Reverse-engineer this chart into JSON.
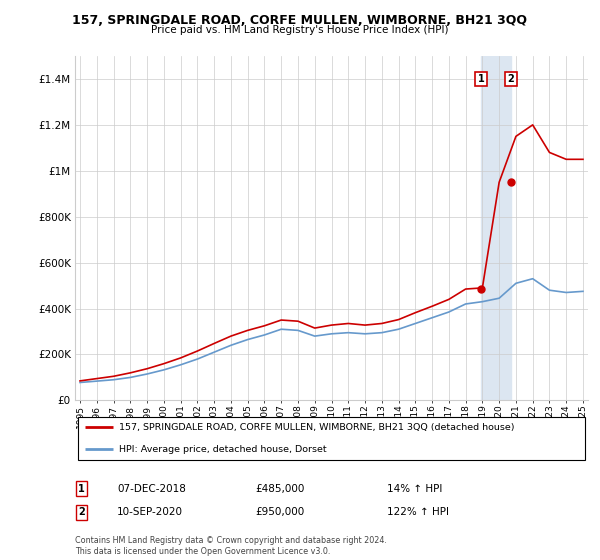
{
  "title": "157, SPRINGDALE ROAD, CORFE MULLEN, WIMBORNE, BH21 3QQ",
  "subtitle": "Price paid vs. HM Land Registry's House Price Index (HPI)",
  "ylim": [
    0,
    1500000
  ],
  "yticks": [
    0,
    200000,
    400000,
    600000,
    800000,
    1000000,
    1200000,
    1400000
  ],
  "ytick_labels": [
    "£0",
    "£200K",
    "£400K",
    "£600K",
    "£800K",
    "£1M",
    "£1.2M",
    "£1.4M"
  ],
  "legend_label_red": "157, SPRINGDALE ROAD, CORFE MULLEN, WIMBORNE, BH21 3QQ (detached house)",
  "legend_label_blue": "HPI: Average price, detached house, Dorset",
  "annotation1_date": "07-DEC-2018",
  "annotation1_price": "£485,000",
  "annotation1_hpi": "14% ↑ HPI",
  "annotation2_date": "10-SEP-2020",
  "annotation2_price": "£950,000",
  "annotation2_hpi": "122% ↑ HPI",
  "footer": "Contains HM Land Registry data © Crown copyright and database right 2024.\nThis data is licensed under the Open Government Licence v3.0.",
  "red_color": "#cc0000",
  "blue_color": "#6699cc",
  "highlight_color": "#dce6f1",
  "marker1_year": 2018.92,
  "marker1_value": 485000,
  "marker2_year": 2020.7,
  "marker2_value": 950000,
  "hpi_years": [
    1995,
    1996,
    1997,
    1998,
    1999,
    2000,
    2001,
    2002,
    2003,
    2004,
    2005,
    2006,
    2007,
    2008,
    2009,
    2010,
    2011,
    2012,
    2013,
    2014,
    2015,
    2016,
    2017,
    2018,
    2019,
    2020,
    2021,
    2022,
    2023,
    2024,
    2025
  ],
  "hpi_values": [
    78000,
    84000,
    90000,
    100000,
    115000,
    133000,
    155000,
    180000,
    210000,
    240000,
    265000,
    285000,
    310000,
    305000,
    280000,
    290000,
    295000,
    290000,
    295000,
    310000,
    335000,
    360000,
    385000,
    420000,
    430000,
    445000,
    510000,
    530000,
    480000,
    470000,
    475000
  ],
  "red_years": [
    1995,
    1996,
    1997,
    1998,
    1999,
    2000,
    2001,
    2002,
    2003,
    2004,
    2005,
    2006,
    2007,
    2008,
    2009,
    2010,
    2011,
    2012,
    2013,
    2014,
    2015,
    2016,
    2017,
    2018,
    2019,
    2020,
    2021,
    2022,
    2023,
    2024,
    2025
  ],
  "red_values": [
    85000,
    95000,
    105000,
    120000,
    138000,
    160000,
    185000,
    215000,
    248000,
    280000,
    305000,
    325000,
    350000,
    345000,
    315000,
    328000,
    335000,
    328000,
    335000,
    352000,
    382000,
    410000,
    440000,
    485000,
    490000,
    950000,
    1150000,
    1200000,
    1080000,
    1050000,
    1050000
  ],
  "xmin": 1995,
  "xmax": 2025
}
